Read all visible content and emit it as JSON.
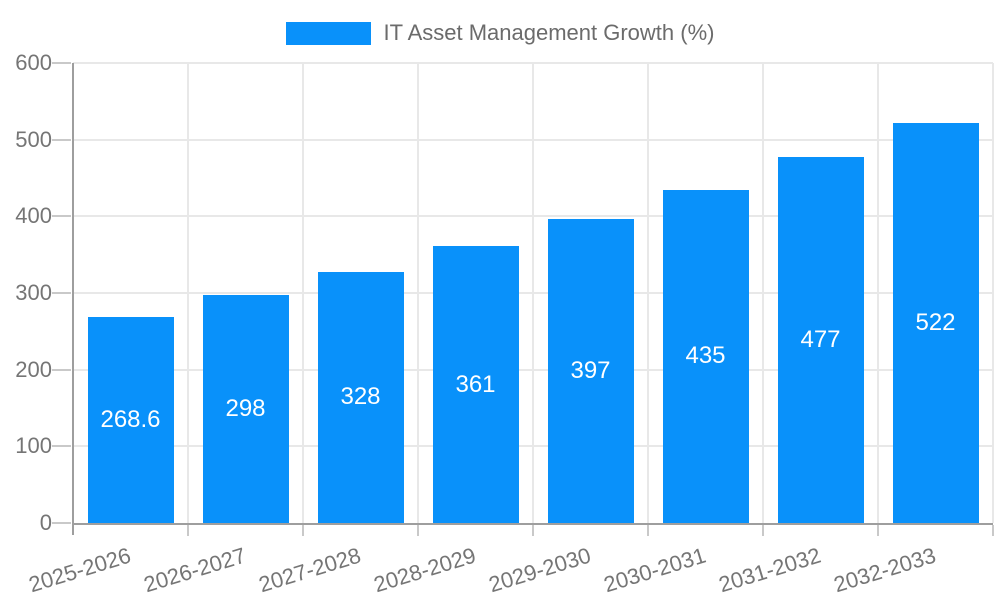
{
  "chart_data": {
    "type": "bar",
    "title": "IT Asset Management Growth (%)",
    "categories": [
      "2025-2026",
      "2026-2027",
      "2027-2028",
      "2028-2029",
      "2029-2030",
      "2030-2031",
      "2031-2032",
      "2032-2033"
    ],
    "values": [
      268.6,
      298,
      328,
      361,
      397,
      435,
      477,
      522
    ],
    "xlabel": "",
    "ylabel": "",
    "ylim": [
      0,
      600
    ],
    "yticks": [
      0,
      100,
      200,
      300,
      400,
      500,
      600
    ],
    "grid": true,
    "legend_position": "top",
    "bar_label_position": "center"
  },
  "colors": {
    "bar": "#0991fa",
    "axis_line": "#9e9e9e",
    "gridline": "#e8e8e8",
    "tick_mark": "#c9c9c9",
    "tick_text": "#757575",
    "legend_text": "#6b6b6b",
    "bar_label_text": "#ffffff"
  }
}
